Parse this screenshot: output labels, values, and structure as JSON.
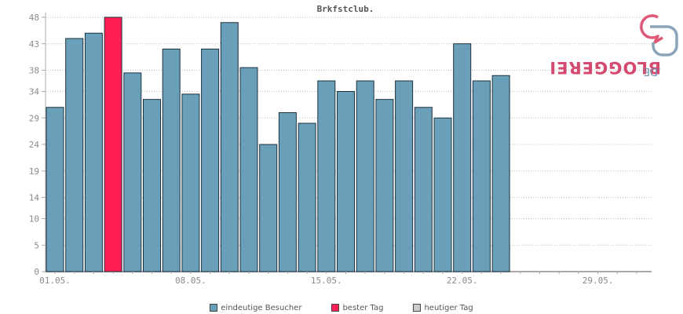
{
  "chart_data": {
    "type": "bar",
    "title": "Brkfstclub.",
    "x_tick_labels": [
      "01.05.",
      "08.05.",
      "15.05.",
      "22.05.",
      "29.05."
    ],
    "y_ticks": [
      0,
      5,
      10,
      14,
      19,
      24,
      29,
      34,
      38,
      43,
      48
    ],
    "ylim": [
      0,
      48
    ],
    "days": 31,
    "values": [
      31,
      44,
      45,
      48,
      37.5,
      32.5,
      42,
      33.5,
      42,
      47,
      38.5,
      24,
      30,
      28,
      36,
      34,
      36,
      32.5,
      36,
      31,
      29,
      43,
      36,
      37
    ],
    "best_day_index": 3,
    "grid": true,
    "legend_position": "bottom-center",
    "colors": {
      "bar": "#6a9fba",
      "best": "#ff1f55",
      "today": "#cccccc",
      "bar_stroke": "#1e3340",
      "grid": "#bbbbbb",
      "axis": "#aaaaaa"
    }
  },
  "legend": [
    {
      "label": "eindeutige Besucher",
      "color": "#6a9fba"
    },
    {
      "label": "bester Tag",
      "color": "#ff1f55"
    },
    {
      "label": "heutiger Tag",
      "color": "#cccccc"
    }
  ],
  "brand": {
    "name": "BLOGGEREI",
    "suffix": ".DE",
    "logo_icon": "speech-bubbles-logo-icon"
  }
}
